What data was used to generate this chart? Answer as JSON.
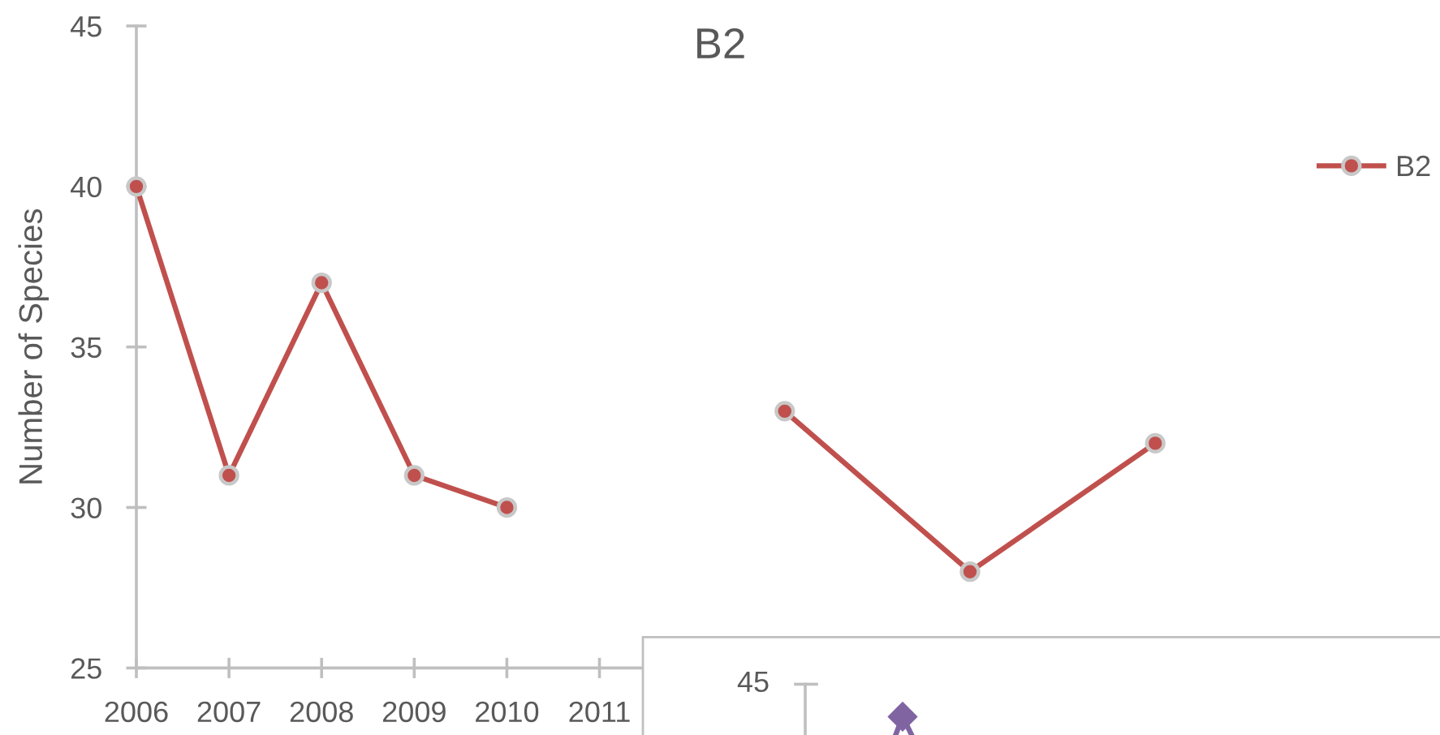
{
  "chart_data": {
    "type": "line",
    "title": "B2",
    "ylabel": "Number of Species",
    "x": [
      2006,
      2007,
      2008,
      2009,
      2010,
      2011,
      2013,
      2015,
      2017
    ],
    "series": [
      {
        "name": "B2",
        "color": "#c0504d",
        "values": [
          40,
          31,
          37,
          31,
          30,
          null,
          33,
          28,
          32
        ]
      }
    ],
    "xlim": [
      2006,
      2017
    ],
    "xticks": [
      2006,
      2007,
      2008,
      2009,
      2010,
      2011
    ],
    "ylim": [
      25,
      45
    ],
    "yticks": [
      25,
      30,
      35,
      40,
      45
    ],
    "annotations": [
      "45"
    ],
    "legend": "top right",
    "marker": "circle",
    "line_style": "solid"
  }
}
